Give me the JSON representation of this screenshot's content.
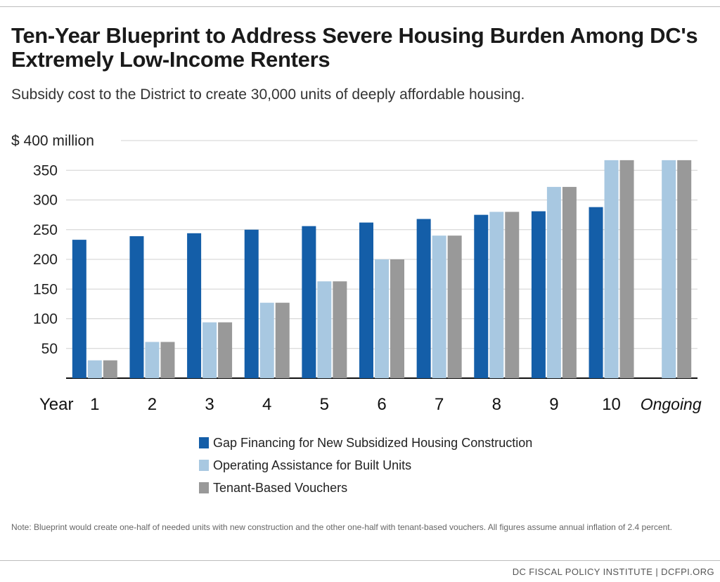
{
  "title": "Ten-Year Blueprint to Address Severe Housing Burden Among DC's Extremely Low-Income Renters",
  "subtitle": "Subsidy cost to the District to create 30,000 units of deeply affordable housing.",
  "colors": {
    "gap": "#145ea8",
    "operating": "#a8c8e1",
    "vouchers": "#999999",
    "grid": "#d0d0d0",
    "axis": "#111111"
  },
  "chart_data": {
    "type": "bar",
    "x_axis_prefix": "Year",
    "categories": [
      "1",
      "2",
      "3",
      "4",
      "5",
      "6",
      "7",
      "8",
      "9",
      "10",
      "Ongoing"
    ],
    "y_top_label": "$ 400 million",
    "y_ticks": [
      50,
      100,
      150,
      200,
      250,
      300,
      350,
      400
    ],
    "ylim": [
      0,
      400
    ],
    "grid": true,
    "legend_position": "bottom",
    "series": [
      {
        "name": "Gap Financing for New Subsidized Housing Construction",
        "color": "#145ea8",
        "values": [
          233,
          239,
          244,
          250,
          256,
          262,
          268,
          275,
          281,
          288,
          null
        ]
      },
      {
        "name": "Operating Assistance for Built Units",
        "color": "#a8c8e1",
        "values": [
          30,
          61,
          94,
          127,
          163,
          200,
          240,
          280,
          322,
          367,
          367
        ]
      },
      {
        "name": "Tenant-Based Vouchers",
        "color": "#999999",
        "values": [
          30,
          61,
          94,
          127,
          163,
          200,
          240,
          280,
          322,
          367,
          367
        ]
      }
    ]
  },
  "note": "Note: Blueprint would create one-half of needed units with new construction and the other one-half with tenant-based vouchers. All figures assume annual inflation of 2.4 percent.",
  "source": "DC FISCAL POLICY INSTITUTE | DCFPI.ORG"
}
